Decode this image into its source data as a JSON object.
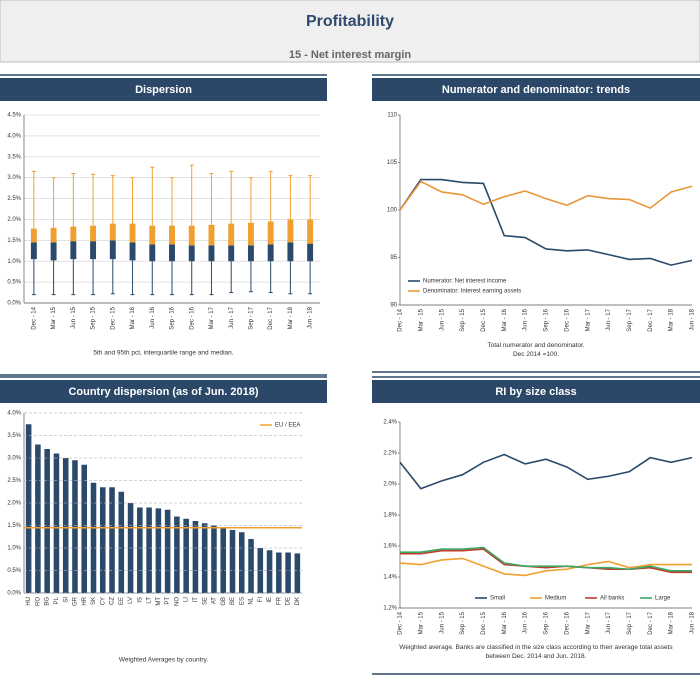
{
  "header": {
    "title": "Profitability",
    "subtitle": "15 - Net interest margin"
  },
  "chart_data": [
    {
      "type": "box",
      "title": "Dispersion",
      "caption": [
        "5th and 95th pct, interquartile range and median."
      ],
      "categories": [
        "Dec - 14",
        "Mar - 15",
        "Jun - 15",
        "Sep - 15",
        "Dec - 15",
        "Mar - 16",
        "Jun - 16",
        "Sep - 16",
        "Dec - 16",
        "Mar - 17",
        "Jun - 17",
        "Sep - 17",
        "Dec - 17",
        "Mar - 18",
        "Jun - 18"
      ],
      "p5": [
        0.2,
        0.2,
        0.2,
        0.2,
        0.22,
        0.2,
        0.2,
        0.2,
        0.2,
        0.2,
        0.25,
        0.27,
        0.25,
        0.22,
        0.22
      ],
      "q1": [
        1.05,
        1.02,
        1.05,
        1.05,
        1.05,
        1.02,
        1.0,
        1.0,
        1.0,
        1.0,
        1.0,
        1.0,
        1.0,
        1.0,
        1.0
      ],
      "median": [
        1.45,
        1.45,
        1.48,
        1.48,
        1.5,
        1.45,
        1.4,
        1.4,
        1.38,
        1.38,
        1.38,
        1.38,
        1.4,
        1.45,
        1.42
      ],
      "q3": [
        1.78,
        1.8,
        1.83,
        1.85,
        1.9,
        1.9,
        1.85,
        1.85,
        1.85,
        1.87,
        1.9,
        1.92,
        1.95,
        2.0,
        2.0
      ],
      "p95": [
        3.15,
        3.0,
        3.1,
        3.08,
        3.05,
        3.0,
        3.25,
        3.0,
        3.3,
        3.1,
        3.15,
        3.0,
        3.15,
        3.05,
        3.05
      ],
      "lower_color": "#2b4a6b",
      "upper_color": "#f0a030",
      "ylim": [
        0,
        4.5
      ],
      "yticks": [
        {
          "value": 0,
          "label": "0.0%"
        },
        {
          "value": 0.5,
          "label": "0.5%"
        },
        {
          "value": 1,
          "label": "1.0%"
        },
        {
          "value": 1.5,
          "label": "1.5%"
        },
        {
          "value": 2,
          "label": "2.0%"
        },
        {
          "value": 2.5,
          "label": "2.5%"
        },
        {
          "value": 3,
          "label": "3.0%"
        },
        {
          "value": 3.5,
          "label": "3.5%"
        },
        {
          "value": 4,
          "label": "4.0%"
        },
        {
          "value": 4.5,
          "label": "4.5%"
        }
      ],
      "grid": true
    },
    {
      "type": "line",
      "title": "Numerator and denominator: trends",
      "caption": [
        "Total numerator and denominator.",
        "Dec 2014 =100."
      ],
      "categories": [
        "Dec - 14",
        "Mar - 15",
        "Jun - 15",
        "Sep - 15",
        "Dec - 15",
        "Mar - 16",
        "Jun - 16",
        "Sep - 16",
        "Dec - 16",
        "Mar - 17",
        "Jun - 17",
        "Sep - 17",
        "Dec - 17",
        "Mar - 18",
        "Jun - 18"
      ],
      "series": [
        {
          "name": "Numerator: Net interest income",
          "color": "#2b4a6b",
          "values": [
            100,
            103.2,
            103.2,
            102.9,
            102.8,
            97.3,
            97.1,
            95.9,
            95.7,
            95.8,
            95.3,
            94.8,
            94.9,
            94.2,
            94.7
          ]
        },
        {
          "name": "Denominator: Interest earning assets",
          "color": "#e8983a",
          "values": [
            100,
            103.0,
            101.9,
            101.6,
            100.6,
            101.4,
            102.0,
            101.2,
            100.5,
            101.5,
            101.2,
            101.1,
            100.2,
            101.9,
            102.5
          ]
        }
      ],
      "ylim": [
        90,
        110
      ],
      "yticks": [
        90,
        95,
        100,
        105,
        110
      ],
      "grid": false,
      "legend": "bottom-left"
    },
    {
      "type": "bar",
      "title": "Country dispersion (as of Jun. 2018)",
      "caption": [
        "Weighted Averages by country."
      ],
      "categories": [
        "HU",
        "RO",
        "BG",
        "PL",
        "SI",
        "GR",
        "HR",
        "SK",
        "CY",
        "CZ",
        "EE",
        "LV",
        "IS",
        "LT",
        "MT",
        "PT",
        "NO",
        "LI",
        "IT",
        "SE",
        "AT",
        "GB",
        "BE",
        "ES",
        "NL",
        "FI",
        "IE",
        "FR",
        "DE",
        "DK"
      ],
      "values": [
        3.75,
        3.3,
        3.2,
        3.1,
        3.0,
        2.95,
        2.85,
        2.45,
        2.35,
        2.35,
        2.25,
        2.0,
        1.9,
        1.9,
        1.88,
        1.85,
        1.7,
        1.65,
        1.6,
        1.55,
        1.5,
        1.45,
        1.4,
        1.35,
        1.2,
        1.0,
        0.95,
        0.9,
        0.9,
        0.88
      ],
      "color": "#2b4a6b",
      "reference_line": {
        "name": "EU / EEA",
        "value": 1.45,
        "color": "#f0a030"
      },
      "ylim": [
        0,
        4
      ],
      "yticks": [
        {
          "value": 0,
          "label": "0.0%"
        },
        {
          "value": 0.5,
          "label": "0.5%"
        },
        {
          "value": 1,
          "label": "1.0%"
        },
        {
          "value": 1.5,
          "label": "1.5%"
        },
        {
          "value": 2,
          "label": "2.0%"
        },
        {
          "value": 2.5,
          "label": "2.5%"
        },
        {
          "value": 3,
          "label": "3.0%"
        },
        {
          "value": 3.5,
          "label": "3.5%"
        },
        {
          "value": 4,
          "label": "4.0%"
        }
      ],
      "grid": true,
      "legend": "top-right"
    },
    {
      "type": "line",
      "title": "RI by size class",
      "caption": [
        "Weighted average. Banks are classified in the size class according to their average total assets",
        "between Dec. 2014 and Jun. 2018."
      ],
      "categories": [
        "Dec - 14",
        "Mar - 15",
        "Jun - 15",
        "Sep - 15",
        "Dec - 15",
        "Mar - 16",
        "Jun - 16",
        "Sep - 16",
        "Dec - 16",
        "Mar - 17",
        "Jun - 17",
        "Sep - 17",
        "Dec - 17",
        "Mar - 18",
        "Jun - 18"
      ],
      "series": [
        {
          "name": "Small",
          "color": "#2b4a6b",
          "values": [
            2.14,
            1.97,
            2.02,
            2.06,
            2.14,
            2.19,
            2.13,
            2.16,
            2.11,
            2.03,
            2.05,
            2.08,
            2.17,
            2.14,
            2.17
          ]
        },
        {
          "name": "Medium",
          "color": "#f0a030",
          "values": [
            1.49,
            1.48,
            1.51,
            1.52,
            1.47,
            1.42,
            1.41,
            1.44,
            1.45,
            1.48,
            1.5,
            1.46,
            1.48,
            1.48,
            1.48
          ]
        },
        {
          "name": "All banks",
          "color": "#c0392b",
          "values": [
            1.55,
            1.55,
            1.57,
            1.57,
            1.58,
            1.48,
            1.47,
            1.46,
            1.47,
            1.46,
            1.45,
            1.45,
            1.46,
            1.43,
            1.43
          ]
        },
        {
          "name": "Large",
          "color": "#3aa864",
          "values": [
            1.56,
            1.56,
            1.58,
            1.58,
            1.59,
            1.49,
            1.47,
            1.47,
            1.47,
            1.46,
            1.46,
            1.45,
            1.47,
            1.44,
            1.44
          ]
        }
      ],
      "ylim": [
        1.2,
        2.4
      ],
      "yticks": [
        {
          "value": 1.2,
          "label": "1.2%"
        },
        {
          "value": 1.4,
          "label": "1.4%"
        },
        {
          "value": 1.6,
          "label": "1.6%"
        },
        {
          "value": 1.8,
          "label": "1.8%"
        },
        {
          "value": 2.0,
          "label": "2.0%"
        },
        {
          "value": 2.2,
          "label": "2.2%"
        },
        {
          "value": 2.4,
          "label": "2.4%"
        }
      ],
      "grid": false,
      "legend": "bottom"
    }
  ]
}
